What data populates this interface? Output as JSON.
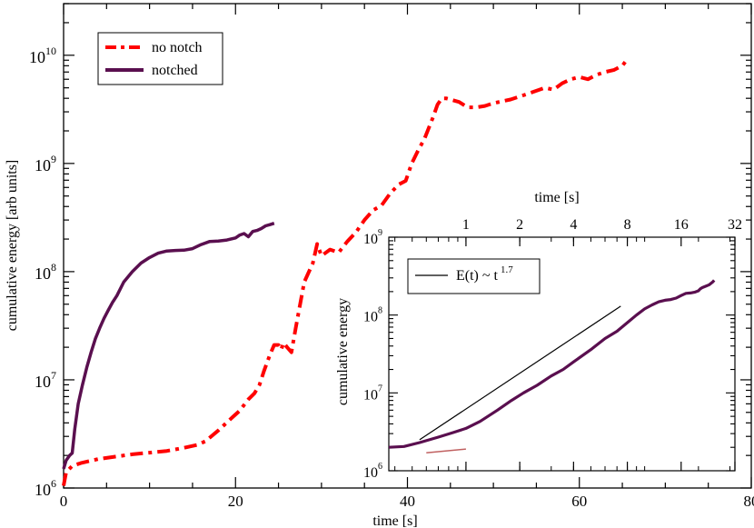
{
  "chart_data": [
    {
      "id": "main",
      "type": "line",
      "xlabel": "time [s]",
      "ylabel": "cumulative energy [arb units]",
      "xlim": [
        0,
        80
      ],
      "ylim": [
        1000000,
        30000000000
      ],
      "yscale": "log",
      "xticks": [
        0,
        20,
        40,
        60,
        80
      ],
      "xtick_labels": [
        "0",
        "20",
        "40",
        "60",
        "80"
      ],
      "yticks": [
        1000000,
        10000000,
        100000000,
        1000000000,
        10000000000
      ],
      "ytick_labels": [
        {
          "base": "10",
          "exp": "6"
        },
        {
          "base": "10",
          "exp": "7"
        },
        {
          "base": "10",
          "exp": "8"
        },
        {
          "base": "10",
          "exp": "9"
        },
        {
          "base": "10",
          "exp": "10"
        }
      ],
      "legend": {
        "position": "top-left",
        "entries": [
          "no notch",
          "notched"
        ]
      },
      "series": [
        {
          "name": "no notch",
          "color": "#ff0000",
          "style": "dash-dot",
          "x": [
            0,
            0.3,
            1,
            2,
            4,
            6,
            8,
            10,
            12,
            14,
            15.5,
            16.5,
            18,
            19.5,
            20.5,
            21.5,
            22.2,
            22.8,
            23.3,
            24,
            24.5,
            25,
            25.3,
            25.6,
            26,
            26.5,
            27,
            28,
            29,
            29.5,
            30,
            31,
            32,
            33,
            34,
            35,
            36,
            37,
            38,
            39,
            39.8,
            40.5,
            41.2,
            42,
            43,
            43.5,
            44,
            44.5,
            45,
            46,
            47,
            48,
            49,
            50,
            52,
            54,
            56,
            57,
            58,
            59,
            60,
            61,
            62,
            63,
            64,
            65,
            65.5
          ],
          "y": [
            1050000,
            1400000,
            1600000,
            1700000,
            1850000,
            1950000,
            2050000,
            2120000,
            2200000,
            2350000,
            2500000,
            2700000,
            3400000,
            4400000,
            5200000,
            6600000,
            7500000,
            9000000,
            12000000,
            17000000,
            21000000,
            21000000,
            19000000,
            22000000,
            20000000,
            18000000,
            30000000,
            80000000,
            120000000,
            180000000,
            140000000,
            160000000,
            150000000,
            190000000,
            230000000,
            300000000,
            370000000,
            410000000,
            530000000,
            640000000,
            690000000,
            1000000000,
            1300000000,
            1700000000,
            2700000000,
            3500000000,
            4000000000,
            4000000000,
            3900000000,
            3700000000,
            3300000000,
            3300000000,
            3400000000,
            3600000000,
            3900000000,
            4400000000,
            5000000000,
            4800000000,
            5500000000,
            6000000000,
            6300000000,
            6000000000,
            6600000000,
            7000000000,
            7300000000,
            8000000000,
            9000000000
          ]
        },
        {
          "name": "notched",
          "color": "#5a0f4f",
          "style": "solid",
          "x": [
            0,
            0.3,
            0.7,
            1,
            1.3,
            1.7,
            2.2,
            2.7,
            3.2,
            3.7,
            4.2,
            4.7,
            5.2,
            5.7,
            6.2,
            7,
            8,
            9,
            10,
            11,
            12,
            13,
            14,
            15,
            16,
            17,
            18,
            19,
            20,
            20.5,
            21,
            21.5,
            22,
            22.5,
            23,
            23.5,
            24,
            24.5
          ],
          "y": [
            1500000,
            1800000,
            2000000,
            2100000,
            3500000,
            6000000,
            9000000,
            13000000,
            18000000,
            24000000,
            30000000,
            37000000,
            44000000,
            52000000,
            60000000,
            80000000,
            100000000,
            120000000,
            135000000,
            148000000,
            155000000,
            157000000,
            158000000,
            163000000,
            178000000,
            190000000,
            192000000,
            196000000,
            205000000,
            218000000,
            225000000,
            210000000,
            235000000,
            240000000,
            250000000,
            265000000,
            272000000,
            280000000
          ]
        }
      ]
    },
    {
      "id": "inset",
      "type": "line",
      "xlabel": "time [s]",
      "ylabel": "cumulative energy",
      "xscale": "log",
      "yscale": "log",
      "xlim": [
        0.37,
        32
      ],
      "ylim": [
        1000000,
        1000000000
      ],
      "xticks": [
        1,
        2,
        4,
        8,
        16,
        32
      ],
      "xtick_labels": [
        "1",
        "2",
        "4",
        "8",
        "16",
        "32"
      ],
      "yticks": [
        1000000,
        10000000,
        100000000,
        1000000000
      ],
      "ytick_labels": [
        {
          "base": "10",
          "exp": "6"
        },
        {
          "base": "10",
          "exp": "7"
        },
        {
          "base": "10",
          "exp": "8"
        },
        {
          "base": "10",
          "exp": "9"
        }
      ],
      "legend": {
        "position": "top-left",
        "entries": [
          "E(t) ~ t 1.7"
        ]
      },
      "legend_main": "E(t) ~ t",
      "legend_exp": "1.7",
      "series": [
        {
          "name": "notched",
          "color": "#5a0f4f",
          "style": "solid",
          "x": [
            0.37,
            0.45,
            0.55,
            0.7,
            0.85,
            1.0,
            1.2,
            1.5,
            1.8,
            2.1,
            2.5,
            3.0,
            3.5,
            4.0,
            5.0,
            6.0,
            7.0,
            8.0,
            9.0,
            10.0,
            11.0,
            12.0,
            13.0,
            14.0,
            15.0,
            16.0,
            17.0,
            18.0,
            19.0,
            20.0,
            20.5,
            21.0,
            22.0,
            23.0,
            24.0,
            24.5
          ],
          "y": [
            2000000,
            2050000,
            2300000,
            2700000,
            3100000,
            3500000,
            4300000,
            6000000,
            8000000,
            10000000,
            12500000,
            16500000,
            20000000,
            25000000,
            36000000,
            50000000,
            62000000,
            80000000,
            100000000,
            120000000,
            135000000,
            148000000,
            155000000,
            158000000,
            165000000,
            178000000,
            190000000,
            192000000,
            196000000,
            205000000,
            218000000,
            225000000,
            235000000,
            245000000,
            265000000,
            280000000
          ]
        },
        {
          "name": "E(t) ~ t 1.7",
          "color": "#000000",
          "style": "solid",
          "x": [
            0.55,
            7.35
          ],
          "y": [
            2500000,
            130000000
          ]
        },
        {
          "name": "small segment",
          "color": "#c06060",
          "style": "solid",
          "x": [
            0.6,
            1.0
          ],
          "y": [
            1700000,
            1900000
          ]
        }
      ]
    }
  ]
}
